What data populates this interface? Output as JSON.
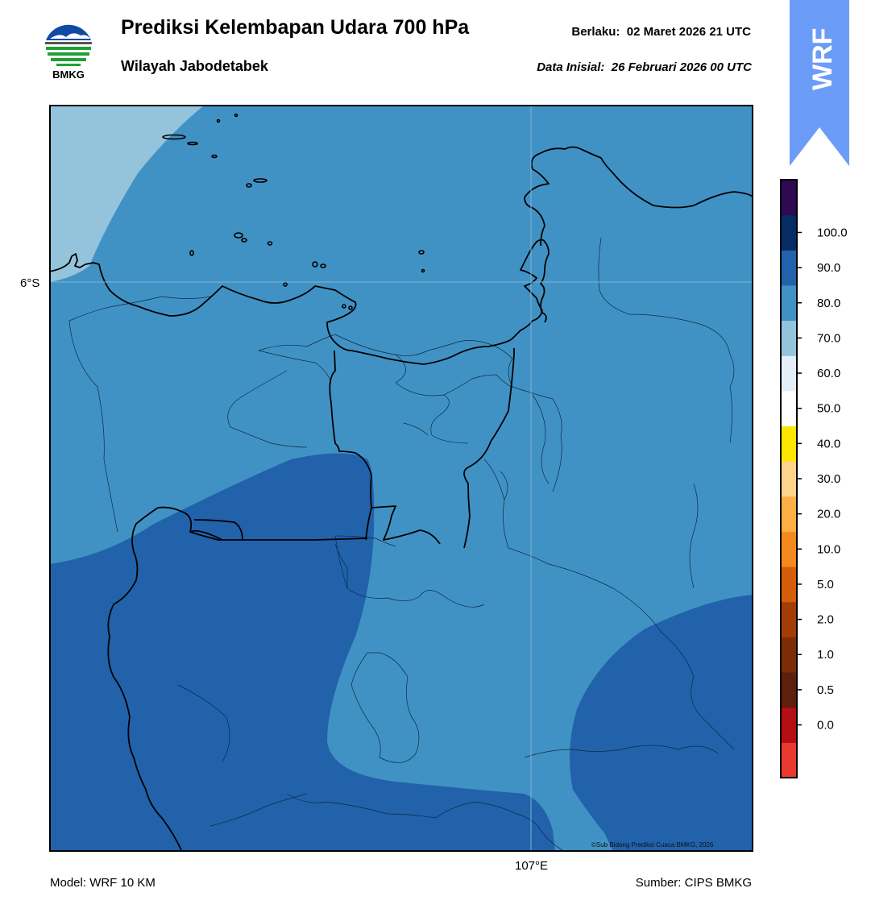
{
  "header": {
    "title": "Prediksi Kelembapan Udara 700 hPa",
    "subtitle": "Wilayah Jabodetabek",
    "valid_label": "Berlaku:",
    "valid_time": "02 Maret 2026 21 UTC",
    "init_label": "Data Inisial:",
    "init_time": "26 Februari 2026 00 UTC"
  },
  "logo": {
    "text": "BMKG",
    "icon": "bmkg-logo-icon"
  },
  "badge": {
    "text": "WRF",
    "color": "#6b9cf7"
  },
  "map": {
    "lat_label": "6°S",
    "lon_label": "107°E",
    "credit": "©Sub Bidang Prediksi Cuaca BMKG, 2026",
    "fill_colors": {
      "level_60_70": "#94c4dc",
      "level_70_80": "#4192c4",
      "level_80_90": "#2162ab"
    }
  },
  "footer": {
    "model": "Model: WRF 10 KM",
    "source": "Sumber: CIPS BMKG"
  },
  "colorbar": {
    "labels": [
      "0.0",
      "0.5",
      "1.0",
      "2.0",
      "5.0",
      "10.0",
      "20.0",
      "30.0",
      "40.0",
      "50.0",
      "60.0",
      "70.0",
      "80.0",
      "90.0",
      "100.0"
    ],
    "colors": [
      "#e8392e",
      "#b30f14",
      "#5e1f0c",
      "#7b2d08",
      "#a33d06",
      "#d45d0a",
      "#f48a1e",
      "#fbaf45",
      "#fdd58a",
      "#fee600",
      "#ffffff",
      "#e2eef8",
      "#94c4dc",
      "#4192c4",
      "#2162ab",
      "#052c63",
      "#2d0a52"
    ]
  }
}
